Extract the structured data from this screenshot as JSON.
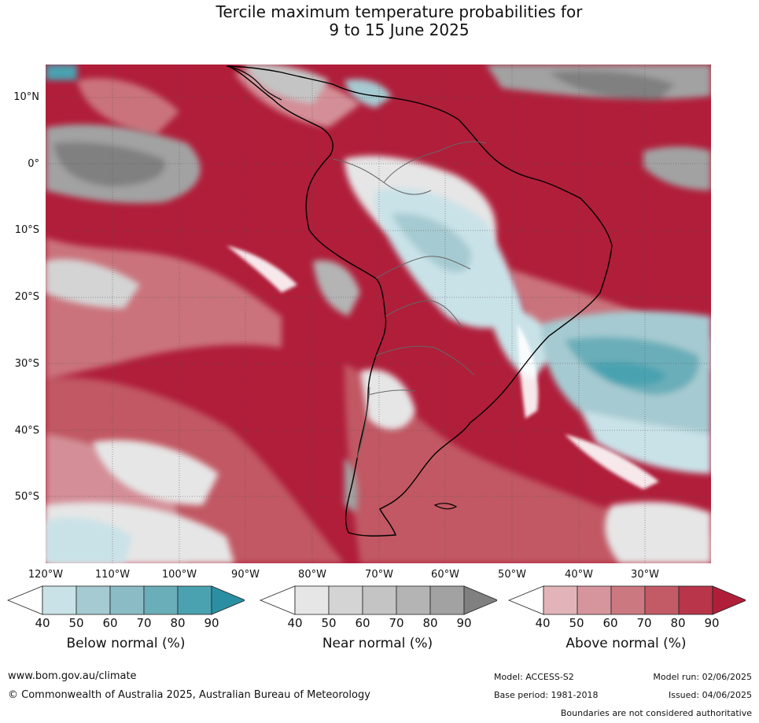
{
  "title": {
    "line1": "Tercile maximum temperature probabilities for",
    "line2": "9 to 15 June 2025"
  },
  "map": {
    "lat_labels": [
      "10°N",
      "0°",
      "10°S",
      "20°S",
      "30°S",
      "40°S",
      "50°S"
    ],
    "lon_labels": [
      "120°W",
      "110°W",
      "100°W",
      "90°W",
      "80°W",
      "70°W",
      "60°W",
      "50°W",
      "40°W",
      "30°W"
    ]
  },
  "colorbars": [
    {
      "title": "Below normal (%)",
      "ticks": [
        "40",
        "50",
        "60",
        "70",
        "80",
        "90"
      ],
      "colors": [
        "#ffffff",
        "#c9e2e8",
        "#a6cad1",
        "#8bbcc5",
        "#6aaeb9",
        "#4aa2b0",
        "#2b8fa3"
      ]
    },
    {
      "title": "Near normal (%)",
      "ticks": [
        "40",
        "50",
        "60",
        "70",
        "80",
        "90"
      ],
      "colors": [
        "#ffffff",
        "#e6e6e6",
        "#d4d4d4",
        "#c4c4c4",
        "#b4b4b4",
        "#a2a2a2",
        "#808080"
      ]
    },
    {
      "title": "Above normal (%)",
      "ticks": [
        "40",
        "50",
        "60",
        "70",
        "80",
        "90"
      ],
      "colors": [
        "#ffffff",
        "#e2b4b9",
        "#d6959c",
        "#cc7880",
        "#c25b66",
        "#b8354a",
        "#b01e3a"
      ]
    }
  ],
  "footer": {
    "website": "www.bom.gov.au/climate",
    "copyright": "© Commonwealth of Australia 2025, Australian Bureau of Meteorology",
    "model": "Model: ACCESS-S2",
    "base_period": "Base period: 1981-2018",
    "model_run": "Model run: 02/06/2025",
    "issued": "Issued: 04/06/2025",
    "boundaries": "Boundaries are not considered authoritative"
  }
}
